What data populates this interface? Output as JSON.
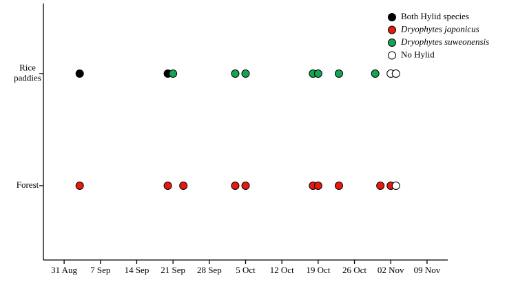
{
  "chart_data": {
    "type": "scatter",
    "y_categories": [
      "Rice paddies",
      "Forest"
    ],
    "xlim": [
      "08-27",
      "11-13"
    ],
    "xticks": [
      {
        "value": "08-31",
        "label": "31 Aug"
      },
      {
        "value": "09-07",
        "label": "7 Sep"
      },
      {
        "value": "09-14",
        "label": "14 Sep"
      },
      {
        "value": "09-21",
        "label": "21 Sep"
      },
      {
        "value": "09-28",
        "label": "28 Sep"
      },
      {
        "value": "10-05",
        "label": "5 Oct"
      },
      {
        "value": "10-12",
        "label": "12 Oct"
      },
      {
        "value": "10-19",
        "label": "19 Oct"
      },
      {
        "value": "10-26",
        "label": "26 Oct"
      },
      {
        "value": "11-02",
        "label": "02 Nov"
      },
      {
        "value": "11-09",
        "label": "09 Nov"
      }
    ],
    "legend": "upper right",
    "series": [
      {
        "name": "Both Hylid species",
        "color": "#000000",
        "style": "normal",
        "x": [
          "09-03",
          "09-20"
        ],
        "y": [
          "Rice paddies",
          "Rice paddies"
        ]
      },
      {
        "name": "Dryophytes japonicus",
        "color": "#e8190f",
        "style": "italic",
        "x": [
          "09-03",
          "09-20",
          "09-23",
          "10-03",
          "10-05",
          "10-18",
          "10-19",
          "10-23",
          "10-31",
          "11-02"
        ],
        "y": [
          "Forest",
          "Forest",
          "Forest",
          "Forest",
          "Forest",
          "Forest",
          "Forest",
          "Forest",
          "Forest",
          "Forest"
        ]
      },
      {
        "name": "Dryophytes suweonensis",
        "color": "#17a451",
        "style": "italic",
        "x": [
          "09-21",
          "10-03",
          "10-05",
          "10-18",
          "10-19",
          "10-23",
          "10-30"
        ],
        "y": [
          "Rice paddies",
          "Rice paddies",
          "Rice paddies",
          "Rice paddies",
          "Rice paddies",
          "Rice paddies",
          "Rice paddies"
        ]
      },
      {
        "name": "No Hylid",
        "color": "#ffffff",
        "style": "normal",
        "x": [
          "11-02",
          "11-03",
          "11-03"
        ],
        "y": [
          "Rice paddies",
          "Rice paddies",
          "Forest"
        ]
      }
    ]
  }
}
